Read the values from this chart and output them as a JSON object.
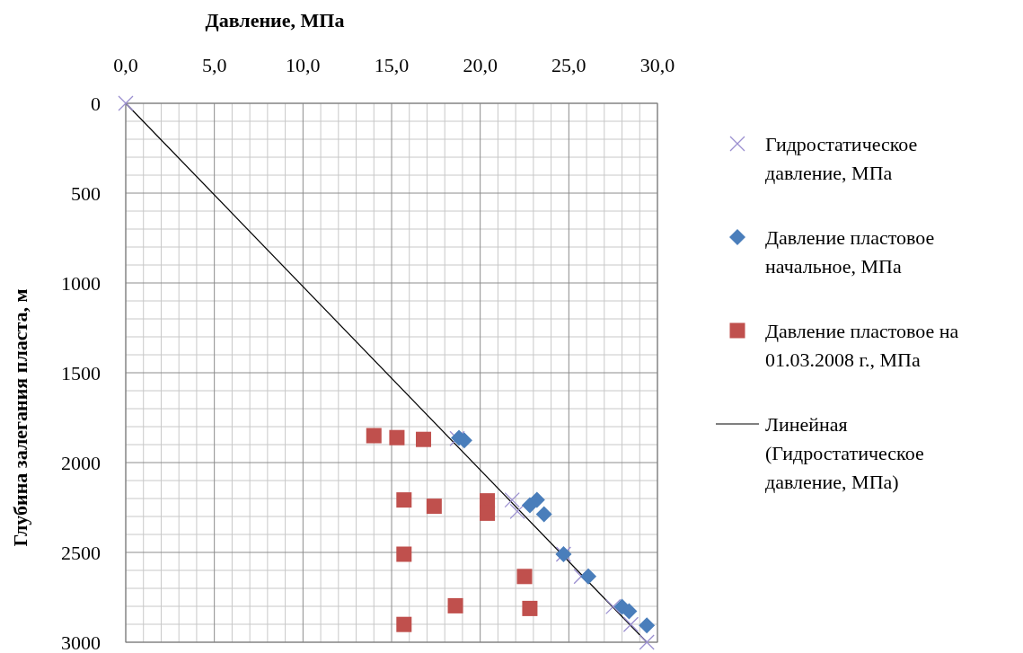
{
  "chart_data": {
    "type": "scatter",
    "xlabel": "Давление, МПа",
    "ylabel": "Глубина залегания пласта, м",
    "xlim": [
      0,
      30
    ],
    "ylim": [
      3000,
      0
    ],
    "xticks": [
      {
        "value": 0,
        "label": "0,0"
      },
      {
        "value": 5,
        "label": "5,0"
      },
      {
        "value": 10,
        "label": "10,0"
      },
      {
        "value": 15,
        "label": "15,0"
      },
      {
        "value": 20,
        "label": "20,0"
      },
      {
        "value": 25,
        "label": "25,0"
      },
      {
        "value": 30,
        "label": "30,0"
      }
    ],
    "yticks": [
      0,
      500,
      1000,
      1500,
      2000,
      2500,
      3000
    ],
    "grid": true,
    "legend": "right",
    "series": [
      {
        "name": "Гидростатическое давление, МПа",
        "marker": "cross",
        "color": "#9b8fd0",
        "x": [
          0,
          18.7,
          21.8,
          22.1,
          24.7,
          25.7,
          27.5,
          28.5,
          29.4
        ],
        "values": [
          0,
          1866,
          2208,
          2272,
          2510,
          2634,
          2802,
          2901,
          3000
        ]
      },
      {
        "name": "Давление пластовое начальное, МПа",
        "marker": "diamond",
        "color": "#4a7ebb",
        "x": [
          18.8,
          19.1,
          22.8,
          23.2,
          23.6,
          24.7,
          26.1,
          28.0,
          28.4,
          29.4
        ],
        "values": [
          1863,
          1876,
          2238,
          2208,
          2287,
          2510,
          2634,
          2802,
          2827,
          2906
        ]
      },
      {
        "name": "Давление пластовое на 01.03.2008 г., МПа",
        "marker": "square",
        "color": "#c0504d",
        "x": [
          14.0,
          15.3,
          16.8,
          15.7,
          17.4,
          20.4,
          20.4,
          15.7,
          22.5,
          18.6,
          22.8,
          15.7
        ],
        "values": [
          1850,
          1861,
          1871,
          2208,
          2243,
          2213,
          2282,
          2510,
          2634,
          2797,
          2812,
          2901
        ]
      },
      {
        "name": "Линейная (Гидростатическое давление, МПа)",
        "type": "line",
        "color": "#000000",
        "x": [
          0,
          29.4
        ],
        "values": [
          0,
          3000
        ]
      }
    ]
  }
}
